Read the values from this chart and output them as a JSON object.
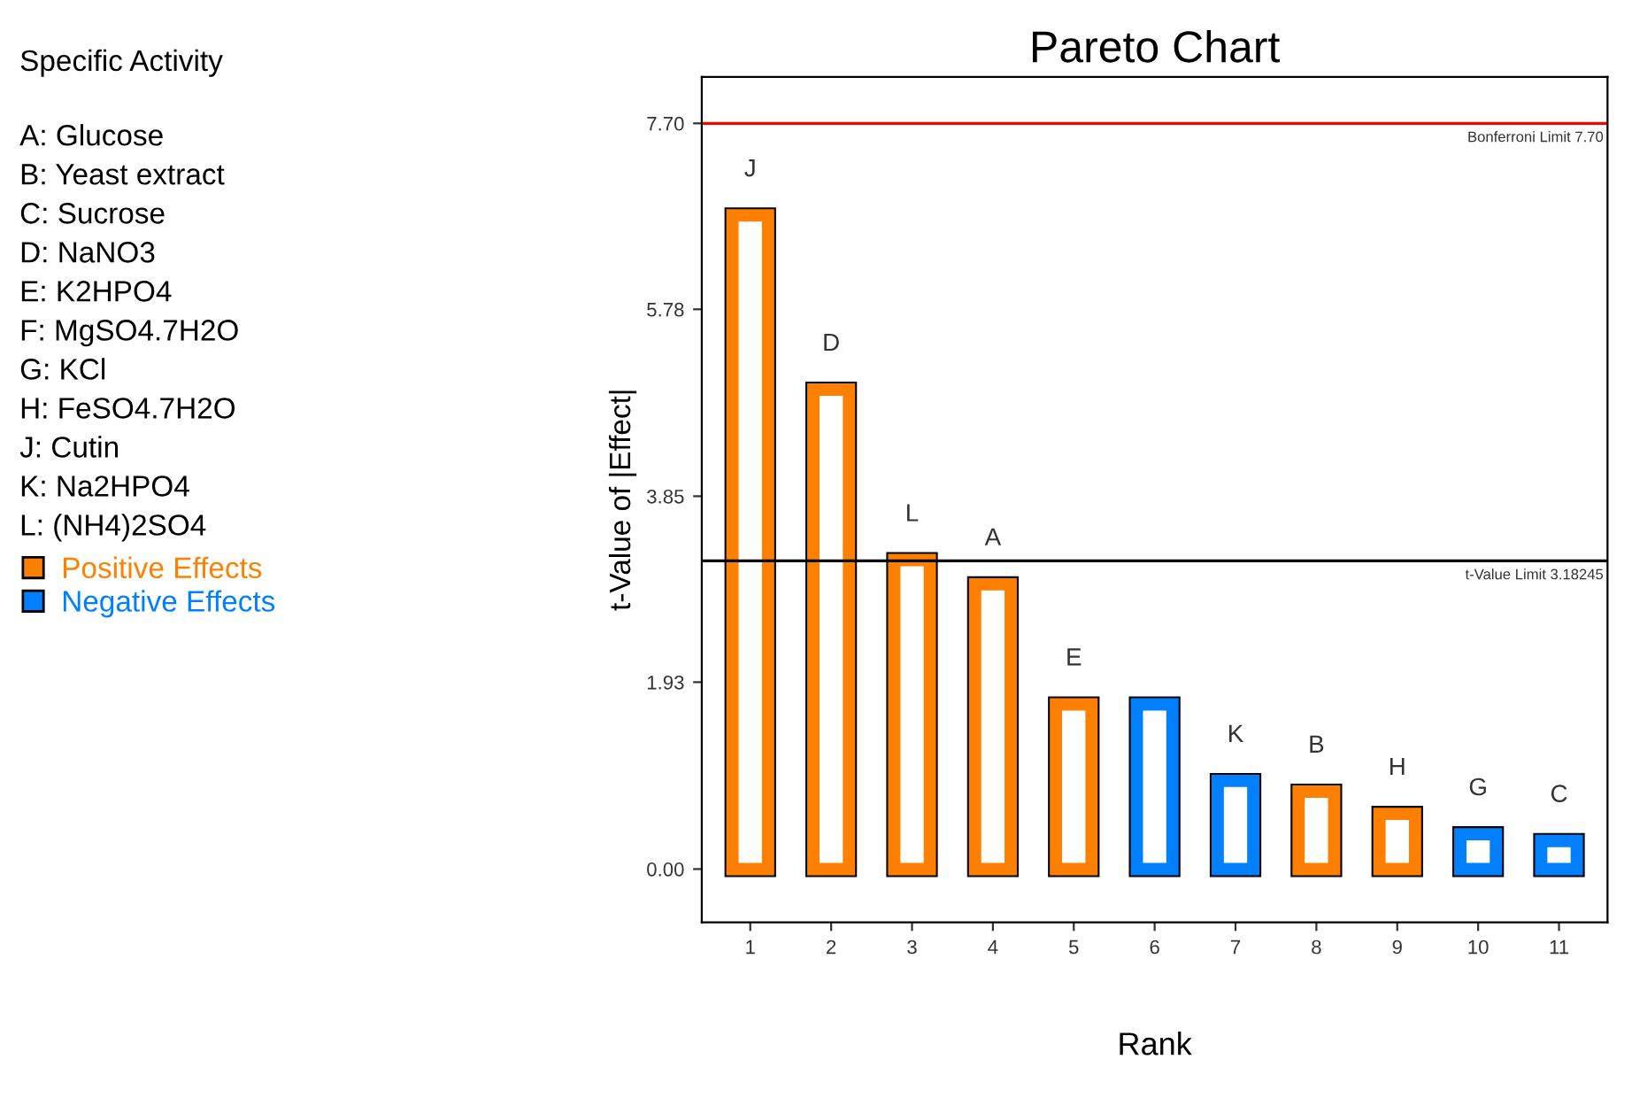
{
  "chart_data": {
    "type": "bar",
    "title": "Pareto Chart",
    "xlabel": "Rank",
    "ylabel": "t-Value of |Effect|",
    "categories": [
      "1",
      "2",
      "3",
      "4",
      "5",
      "6",
      "7",
      "8",
      "9",
      "10",
      "11"
    ],
    "series": [
      {
        "name": "Positive Effects",
        "color": "#ff8000",
        "values": [
          6.75,
          4.95,
          3.19,
          2.94,
          1.7,
          null,
          null,
          0.8,
          0.57,
          null,
          null
        ]
      },
      {
        "name": "Negative Effects",
        "color": "#0080ff",
        "values": [
          null,
          null,
          null,
          null,
          null,
          1.7,
          0.91,
          null,
          null,
          0.36,
          0.29
        ]
      }
    ],
    "ylim": [
      -0.55,
      8.18
    ],
    "yticks": [
      {
        "value": 0,
        "label": "0.00"
      },
      {
        "value": 1.93,
        "label": "1.93"
      },
      {
        "value": 3.85,
        "label": "3.85"
      },
      {
        "value": 5.78,
        "label": "5.78"
      },
      {
        "value": 7.7,
        "label": "7.70"
      }
    ],
    "ref_lines": [
      {
        "axis": "y",
        "value": 7.7,
        "label": "Bonferroni Limit 7.70",
        "color": "#ff0000"
      },
      {
        "axis": "y",
        "value": 3.18245,
        "label": "t-Value Limit 3.18245",
        "color": "#000000"
      }
    ],
    "annotations": [
      "Specific Activity",
      "A: Glucose",
      "B: Yeast extract",
      "C: Sucrose",
      "D: NaNO3",
      "E: K2HPO4",
      "F: MgSO4.7H2O",
      "G: KCl",
      "H: FeSO4.7H2O",
      "J: Cutin",
      "K: Na2HPO4",
      "L: (NH4)2SO4",
      {
        "text": "J",
        "x": "1",
        "y": 6.75
      },
      {
        "text": "D",
        "x": "2",
        "y": 4.95
      },
      {
        "text": "L",
        "x": "3",
        "y": 3.19
      },
      {
        "text": "A",
        "x": "4",
        "y": 2.94
      },
      {
        "text": "E",
        "x": "5",
        "y": 1.7
      },
      {
        "text": "K",
        "x": "7",
        "y": 0.91
      },
      {
        "text": "B",
        "x": "8",
        "y": 0.8
      },
      {
        "text": "H",
        "x": "9",
        "y": 0.57
      },
      {
        "text": "G",
        "x": "10",
        "y": 0.36
      },
      {
        "text": "C",
        "x": "11",
        "y": 0.29
      }
    ],
    "legend": "left",
    "grid": false
  }
}
